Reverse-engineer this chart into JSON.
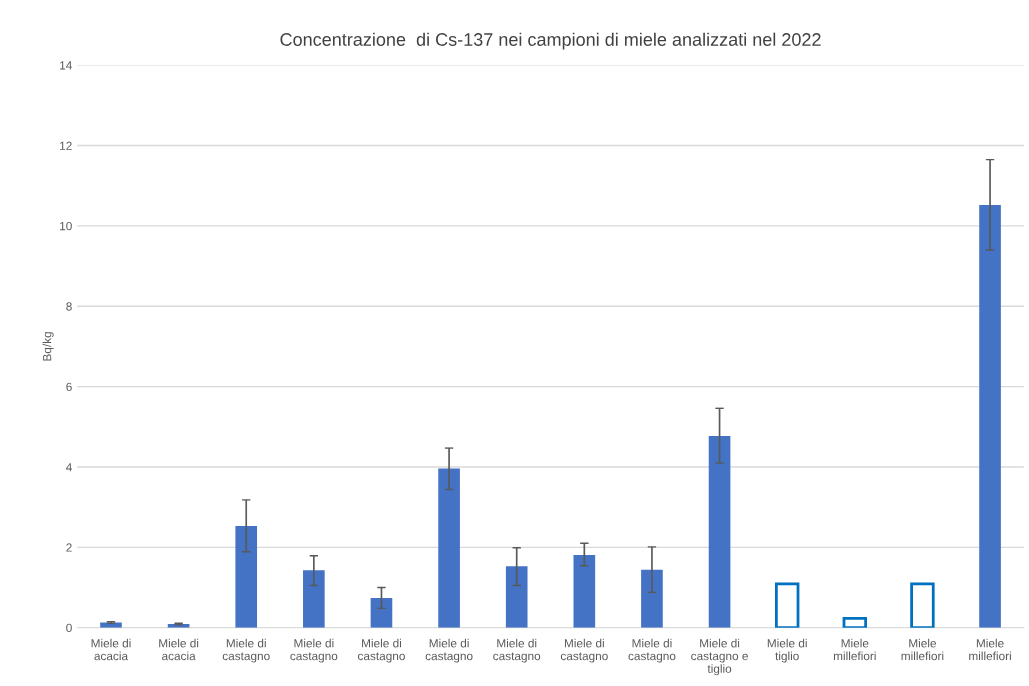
{
  "chart_data": {
    "type": "bar",
    "title": "Concentrazione  di Cs-137 nei campioni di miele analizzati nel 2022",
    "ylabel": "Bq/kg",
    "categories": [
      "Miele di\nacacia",
      "Miele di\nacacia",
      "Miele di\ncastagno",
      "Miele di\ncastagno",
      "Miele di\ncastagno",
      "Miele di\ncastagno",
      "Miele di\ncastagno",
      "Miele di\ncastagno",
      "Miele di\ncastagno",
      "Miele di\ncastagno e\ntiglio",
      "Miele di\ntiglio",
      "Miele\nmillefiori",
      "Miele\nmillefiori",
      "Miele\nmillefiori"
    ],
    "values": [
      0.13,
      0.09,
      2.53,
      1.43,
      0.74,
      3.96,
      1.53,
      1.81,
      1.44,
      4.77,
      1.09,
      0.23,
      1.09,
      10.52
    ],
    "errors": [
      [
        0.11,
        0.15
      ],
      [
        0.07,
        0.11
      ],
      [
        1.89,
        3.18
      ],
      [
        1.05,
        1.79
      ],
      [
        0.48,
        1.0
      ],
      [
        3.44,
        4.47
      ],
      [
        1.05,
        1.99
      ],
      [
        1.54,
        2.1
      ],
      [
        0.88,
        2.01
      ],
      [
        4.1,
        5.46
      ],
      null,
      null,
      null,
      [
        9.4,
        11.65
      ]
    ],
    "colors": [
      "#4472c4",
      "#4472c4",
      "#4472c4",
      "#4472c4",
      "#4472c4",
      "#4472c4",
      "#4472c4",
      "#4472c4",
      "#4472c4",
      "#4472c4",
      "#ffffff",
      "#ffffff",
      "#ffffff",
      "#4472c4"
    ],
    "ylim": [
      0,
      14
    ],
    "yticks": [
      0,
      2,
      4,
      6,
      8,
      10,
      12,
      14
    ],
    "grid": "y"
  }
}
